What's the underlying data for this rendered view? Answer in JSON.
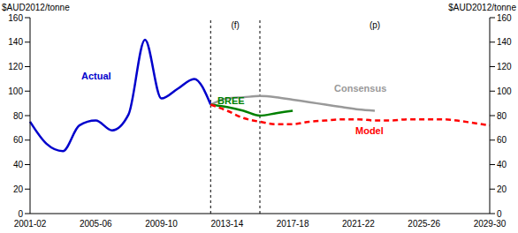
{
  "chart_data": {
    "type": "line",
    "y_label": "$AUD2012/tonne",
    "y2_label": "$AUD2012/tonne",
    "categories": [
      "2001-02",
      null,
      null,
      null,
      "2005-06",
      null,
      null,
      null,
      "2009-10",
      null,
      null,
      null,
      "2013-14",
      null,
      null,
      null,
      "2017-18",
      null,
      null,
      null,
      "2021-22",
      null,
      null,
      null,
      "2025-26",
      null,
      null,
      null,
      "2029-30"
    ],
    "series": [
      {
        "name": "Actual",
        "color": "#0000cc",
        "line_style": "solid",
        "values": [
          75,
          57,
          51,
          72,
          76,
          68,
          81,
          142,
          94,
          102,
          110,
          89,
          null,
          null,
          null,
          null,
          null,
          null,
          null,
          null,
          null,
          null,
          null,
          null,
          null,
          null,
          null,
          null,
          null
        ]
      },
      {
        "name": "Consensus",
        "color": "#999999",
        "line_style": "solid",
        "values": [
          null,
          null,
          null,
          null,
          null,
          null,
          null,
          null,
          null,
          null,
          null,
          89,
          94,
          95,
          96,
          95,
          93,
          91,
          89,
          87,
          85,
          84,
          null,
          null,
          null,
          null,
          null,
          null,
          null
        ]
      },
      {
        "name": "BREE",
        "color": "#008000",
        "line_style": "solid",
        "values": [
          null,
          null,
          null,
          null,
          null,
          null,
          null,
          null,
          null,
          null,
          null,
          89,
          87,
          84,
          80,
          82,
          84,
          null,
          null,
          null,
          null,
          null,
          null,
          null,
          null,
          null,
          null,
          null,
          null
        ]
      },
      {
        "name": "Model",
        "color": "#ff0000",
        "line_style": "dashed",
        "values": [
          null,
          null,
          null,
          null,
          null,
          null,
          null,
          null,
          null,
          null,
          null,
          89,
          84,
          78,
          75,
          73,
          73,
          75,
          76,
          77,
          77,
          76,
          76,
          77,
          77,
          77,
          76,
          74,
          72
        ]
      }
    ],
    "periods": [
      {
        "label": "(f)",
        "start": 11,
        "end": 14
      },
      {
        "label": "(p)",
        "start": 14,
        "end": 28
      }
    ],
    "ylim": [
      0,
      160
    ],
    "yticks": [
      0,
      20,
      40,
      60,
      80,
      100,
      120,
      140,
      160
    ],
    "y2lim": [
      0,
      160
    ],
    "y2ticks": [
      0,
      20,
      40,
      60,
      80,
      100,
      120,
      140,
      160
    ],
    "grid": false
  }
}
